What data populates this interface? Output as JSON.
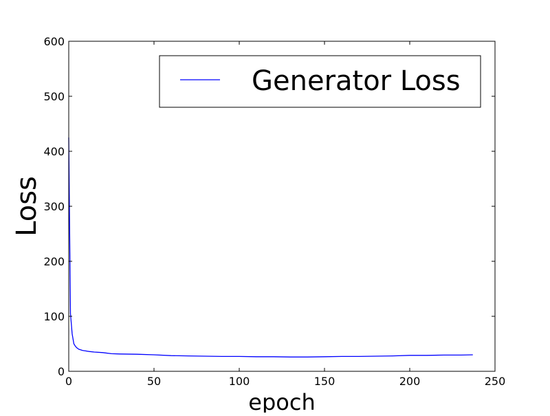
{
  "chart_data": {
    "type": "line",
    "title": "",
    "xlabel": "epoch",
    "ylabel": "Loss",
    "xlim": [
      0,
      250
    ],
    "ylim": [
      0,
      600
    ],
    "xticks": [
      0,
      50,
      100,
      150,
      200,
      250
    ],
    "yticks": [
      0,
      100,
      200,
      300,
      400,
      500,
      600
    ],
    "grid": false,
    "legend_position": "top-right",
    "series": [
      {
        "name": "Generator Loss",
        "color": "#0000ff",
        "x": [
          0,
          1,
          2,
          3,
          4,
          5,
          6,
          7,
          8,
          10,
          12,
          15,
          20,
          25,
          30,
          40,
          50,
          60,
          70,
          80,
          90,
          100,
          110,
          120,
          130,
          140,
          150,
          160,
          170,
          180,
          190,
          200,
          210,
          220,
          230,
          237
        ],
        "y": [
          425,
          105,
          68,
          50,
          45,
          42,
          40,
          39,
          38,
          37,
          36,
          35,
          34,
          32,
          31.5,
          31,
          30,
          28.5,
          28,
          27.5,
          27,
          27,
          26.5,
          26.5,
          26,
          26,
          26.5,
          27,
          27,
          27.5,
          28,
          29,
          29,
          29.5,
          29.5,
          30
        ]
      }
    ]
  }
}
